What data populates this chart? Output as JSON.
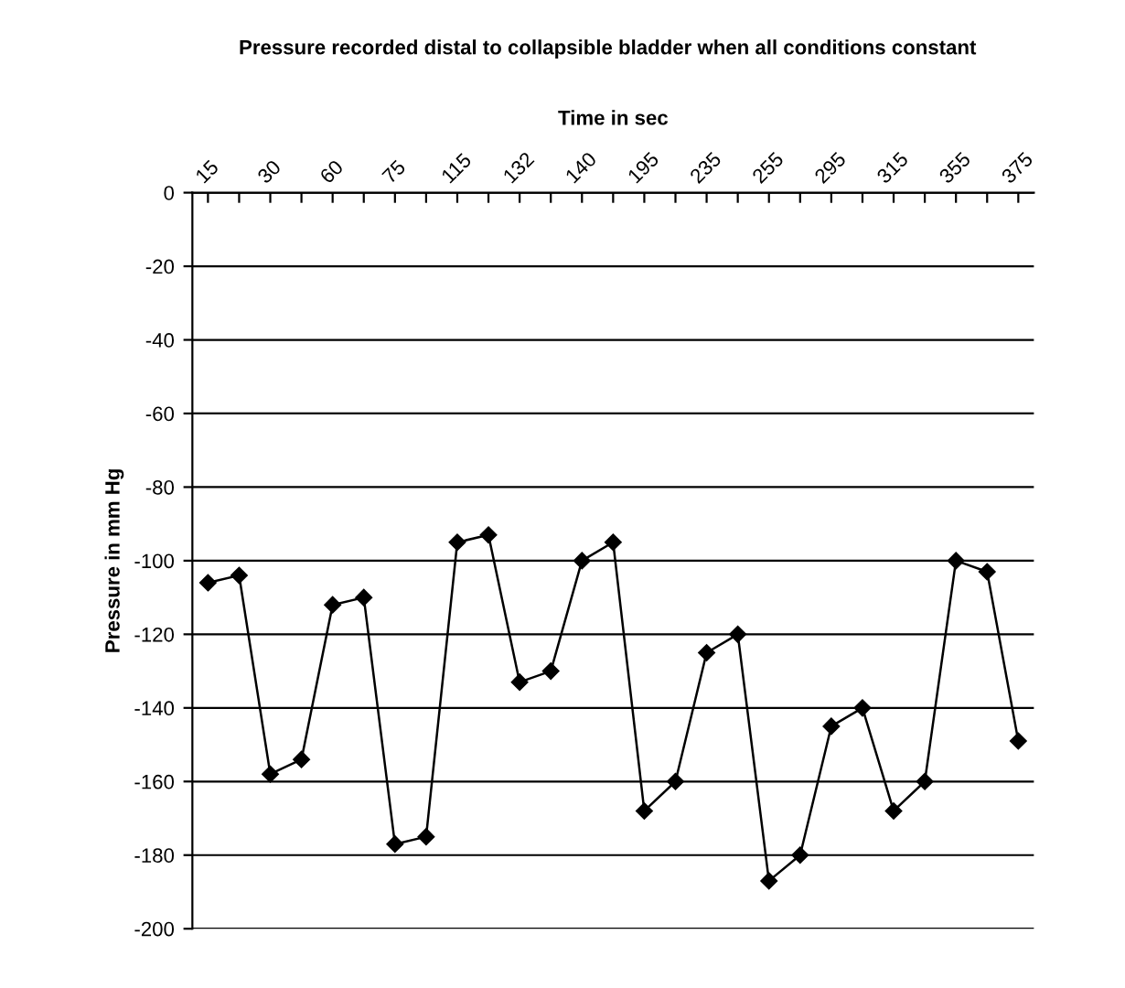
{
  "chart_data": {
    "type": "line",
    "title": "Pressure recorded distal to collapsible bladder when all conditions constant",
    "xlabel": "Time in sec",
    "ylabel": "Pressure in mm Hg",
    "categories": [
      "15",
      null,
      "30",
      null,
      "60",
      null,
      "75",
      null,
      "115",
      null,
      "132",
      null,
      "140",
      null,
      "195",
      null,
      "235",
      null,
      "255",
      null,
      "295",
      null,
      "315",
      null,
      "355",
      null,
      "375"
    ],
    "series": [
      {
        "color": "#000000",
        "values": [
          -106,
          -104,
          -158,
          -154,
          -112,
          -110,
          -177,
          -175,
          -95,
          -93,
          -133,
          -130,
          -100,
          -95,
          -168,
          -160,
          -125,
          -120,
          -187,
          -180,
          -145,
          -140,
          -168,
          -160,
          -100,
          -103,
          -149
        ]
      }
    ],
    "ylim": [
      -200,
      0
    ],
    "yticks": [
      -200,
      -180,
      -160,
      -140,
      -120,
      -100,
      -80,
      -60,
      -40,
      -20,
      0
    ],
    "grid": "y",
    "marker": "diamond",
    "line_style": "solid",
    "legend": false
  }
}
